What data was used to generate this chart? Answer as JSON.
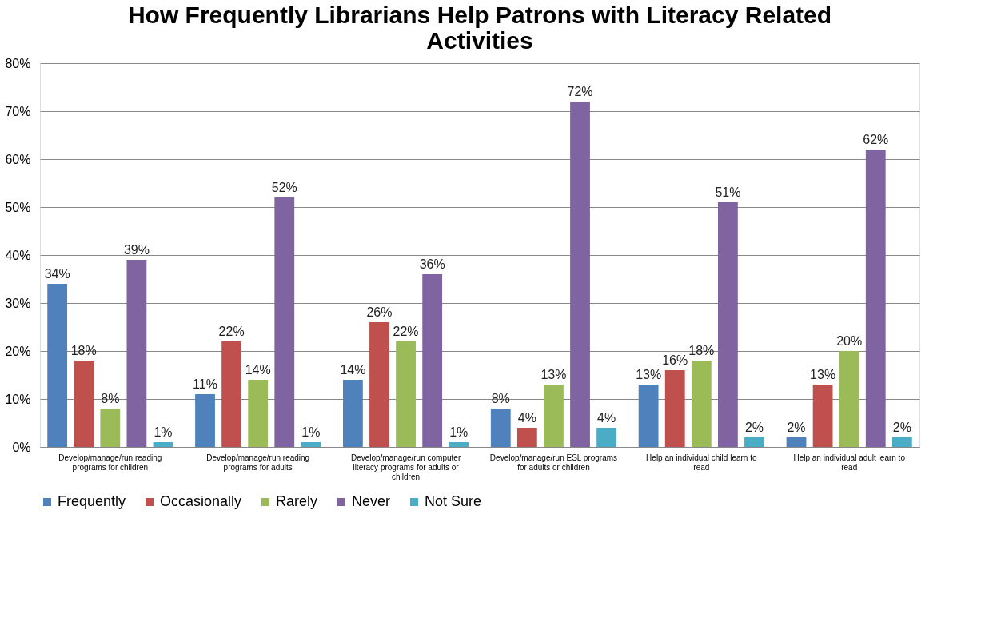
{
  "chart_data": {
    "type": "bar",
    "title": "How Frequently Librarians Help Patrons with Literacy Related Activities",
    "categories": [
      "Develop/manage/run reading programs for children",
      "Develop/manage/run reading programs for adults",
      "Develop/manage/run computer literacy programs for adults or children",
      "Develop/manage/run ESL programs for adults or children",
      "Help an individual child learn to read",
      "Help an individual adult learn to read"
    ],
    "series": [
      {
        "name": "Frequently",
        "color": "#4f81bd",
        "values": [
          34,
          11,
          14,
          8,
          13,
          2
        ],
        "value_labels": [
          "34%",
          "11%",
          "14%",
          "8%",
          "13%",
          "2%"
        ]
      },
      {
        "name": "Occasionally",
        "color": "#c0504d",
        "values": [
          18,
          22,
          26,
          4,
          16,
          13
        ],
        "value_labels": [
          "18%",
          "22%",
          "26%",
          "4%",
          "16%",
          "13%"
        ]
      },
      {
        "name": "Rarely",
        "color": "#9bbb59",
        "values": [
          8,
          14,
          22,
          13,
          18,
          20
        ],
        "value_labels": [
          "8%",
          "14%",
          "22%",
          "13%",
          "18%",
          "20%"
        ]
      },
      {
        "name": "Never",
        "color": "#8064a2",
        "values": [
          39,
          52,
          36,
          72,
          51,
          62
        ],
        "value_labels": [
          "39%",
          "52%",
          "36%",
          "72%",
          "51%",
          "62%"
        ]
      },
      {
        "name": "Not Sure",
        "color": "#4bacc6",
        "values": [
          1,
          1,
          1,
          4,
          2,
          2
        ],
        "value_labels": [
          "1%",
          "1%",
          "1%",
          "4%",
          "2%",
          "2%"
        ]
      }
    ],
    "ylim": [
      0,
      80
    ],
    "yticks": [
      {
        "value": 0,
        "label": "0%"
      },
      {
        "value": 10,
        "label": "10%"
      },
      {
        "value": 20,
        "label": "20%"
      },
      {
        "value": 30,
        "label": "30%"
      },
      {
        "value": 40,
        "label": "40%"
      },
      {
        "value": 50,
        "label": "50%"
      },
      {
        "value": 60,
        "label": "60%"
      },
      {
        "value": 70,
        "label": "70%"
      },
      {
        "value": 80,
        "label": "80%"
      }
    ],
    "grid": "y",
    "legend": "bottom"
  }
}
